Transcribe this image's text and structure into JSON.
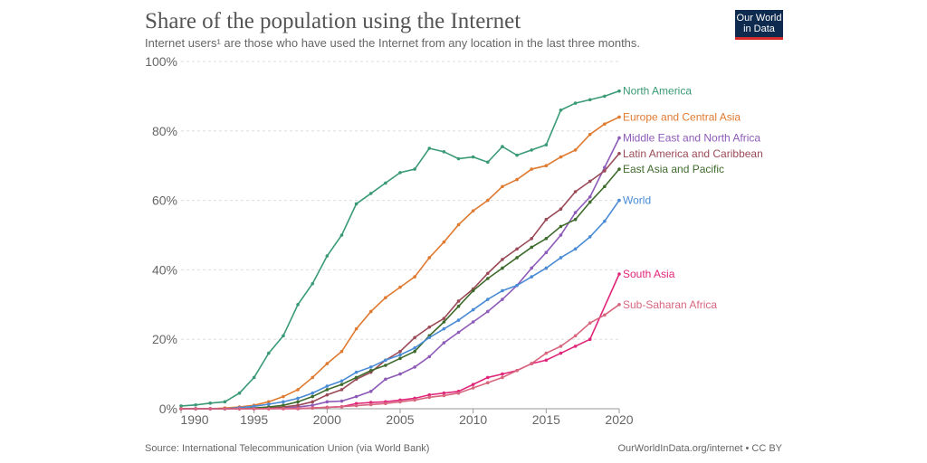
{
  "title": "Share of the population using the Internet",
  "subtitle": "Internet users¹ are those who have used the Internet from any location in the last three months.",
  "logo": "Our World in Data",
  "logo_lines": [
    "Our World",
    "in Data"
  ],
  "footer": {
    "source": "Source: International Telecommunication Union (via World Bank)",
    "credit": "OurWorldInData.org/internet • CC BY"
  },
  "chart_data": {
    "type": "line",
    "title": "Share of the population using the Internet",
    "xlim": [
      1990,
      2020
    ],
    "ylim": [
      0,
      100
    ],
    "y_ticks": [
      "0%",
      "20%",
      "40%",
      "60%",
      "80%",
      "100%"
    ],
    "y_tick_values": [
      0,
      20,
      40,
      60,
      80,
      100
    ],
    "x_ticks": [
      "1990",
      "1995",
      "2000",
      "2005",
      "2010",
      "2015",
      "2020"
    ],
    "x_tick_values": [
      1990,
      1995,
      2000,
      2005,
      2010,
      2015,
      2020
    ],
    "grid": "horizontal dashed",
    "legend": "inline-right",
    "x": [
      1990,
      1991,
      1992,
      1993,
      1994,
      1995,
      1996,
      1997,
      1998,
      1999,
      2000,
      2001,
      2002,
      2003,
      2004,
      2005,
      2006,
      2007,
      2008,
      2009,
      2010,
      2011,
      2012,
      2013,
      2014,
      2015,
      2016,
      2017,
      2018,
      2019,
      2020
    ],
    "series": [
      {
        "name": "North America",
        "color": "#3a9a76",
        "values": [
          0.8,
          1.1,
          1.6,
          2,
          4.5,
          9,
          16,
          21,
          30,
          36,
          44,
          50,
          59,
          62,
          65,
          68,
          69,
          75,
          74,
          72,
          72.5,
          71,
          75.5,
          73,
          74.5,
          76,
          86,
          88,
          89,
          90,
          91.5
        ]
      },
      {
        "name": "Europe and Central Asia",
        "color": "#df7a30",
        "values": [
          0,
          0,
          0,
          0.2,
          0.5,
          1,
          2,
          3.5,
          5.5,
          9,
          13,
          16.5,
          23,
          28,
          32,
          35,
          38,
          43.5,
          48,
          53,
          57,
          60,
          64,
          66,
          69,
          70,
          72.5,
          74.5,
          79,
          82,
          84
        ]
      },
      {
        "name": "Middle East and North Africa",
        "color": "#8e5bb8",
        "values": [
          0,
          0,
          0,
          0,
          0,
          0,
          0.1,
          0.2,
          0.5,
          1,
          2,
          2.2,
          3.5,
          5,
          8.5,
          10,
          12,
          15,
          19,
          22,
          25,
          28,
          31.5,
          35.5,
          40.5,
          45,
          50,
          56.5,
          61,
          69.5,
          78
        ]
      },
      {
        "name": "Latin America and Caribbean",
        "color": "#9b4a57",
        "values": [
          0,
          0,
          0,
          0,
          0,
          0.1,
          0.2,
          0.5,
          1,
          2,
          4,
          5.5,
          8.5,
          10.5,
          14,
          16.5,
          20.5,
          23.5,
          26,
          31,
          34.5,
          39,
          43,
          46,
          49,
          54.5,
          57.5,
          62.5,
          65.5,
          68.5,
          73.5
        ]
      },
      {
        "name": "East Asia and Pacific",
        "color": "#3e6b2c",
        "values": [
          0,
          0,
          0,
          0,
          0,
          0.2,
          0.5,
          1,
          2,
          3.5,
          5.5,
          7,
          9,
          11,
          12.5,
          14.5,
          16.5,
          21,
          25,
          29.5,
          34,
          37.5,
          40.5,
          43.5,
          46.5,
          49,
          52.5,
          54.5,
          59.5,
          64,
          69
        ]
      },
      {
        "name": "World",
        "color": "#4a8bd6",
        "values": [
          0,
          0,
          0,
          0,
          0.3,
          0.7,
          1.3,
          2,
          3,
          4.5,
          6.5,
          8,
          10.5,
          12,
          14,
          15.5,
          17.5,
          20.5,
          23,
          25.5,
          28.5,
          31.5,
          34,
          35.5,
          38,
          40.5,
          43.5,
          46,
          49.5,
          54,
          60
        ]
      },
      {
        "name": "South Asia",
        "color": "#e0267a",
        "values": [
          0,
          0,
          0,
          0,
          0,
          0,
          0,
          0,
          0,
          0.2,
          0.4,
          0.6,
          1.5,
          1.8,
          2,
          2.5,
          3,
          4,
          4.5,
          5,
          7,
          9,
          10,
          11,
          13,
          14,
          16,
          18,
          20,
          null,
          38.8
        ]
      },
      {
        "name": "Sub-Saharan Africa",
        "color": "#d8667e",
        "values": [
          0,
          0,
          0,
          0,
          0,
          0,
          0,
          0.1,
          0.1,
          0.2,
          0.4,
          0.6,
          0.9,
          1.2,
          1.5,
          2,
          2.5,
          3.3,
          3.8,
          4.5,
          6,
          7.5,
          9,
          11,
          13,
          16,
          18,
          21,
          24.7,
          27,
          30
        ]
      }
    ]
  }
}
